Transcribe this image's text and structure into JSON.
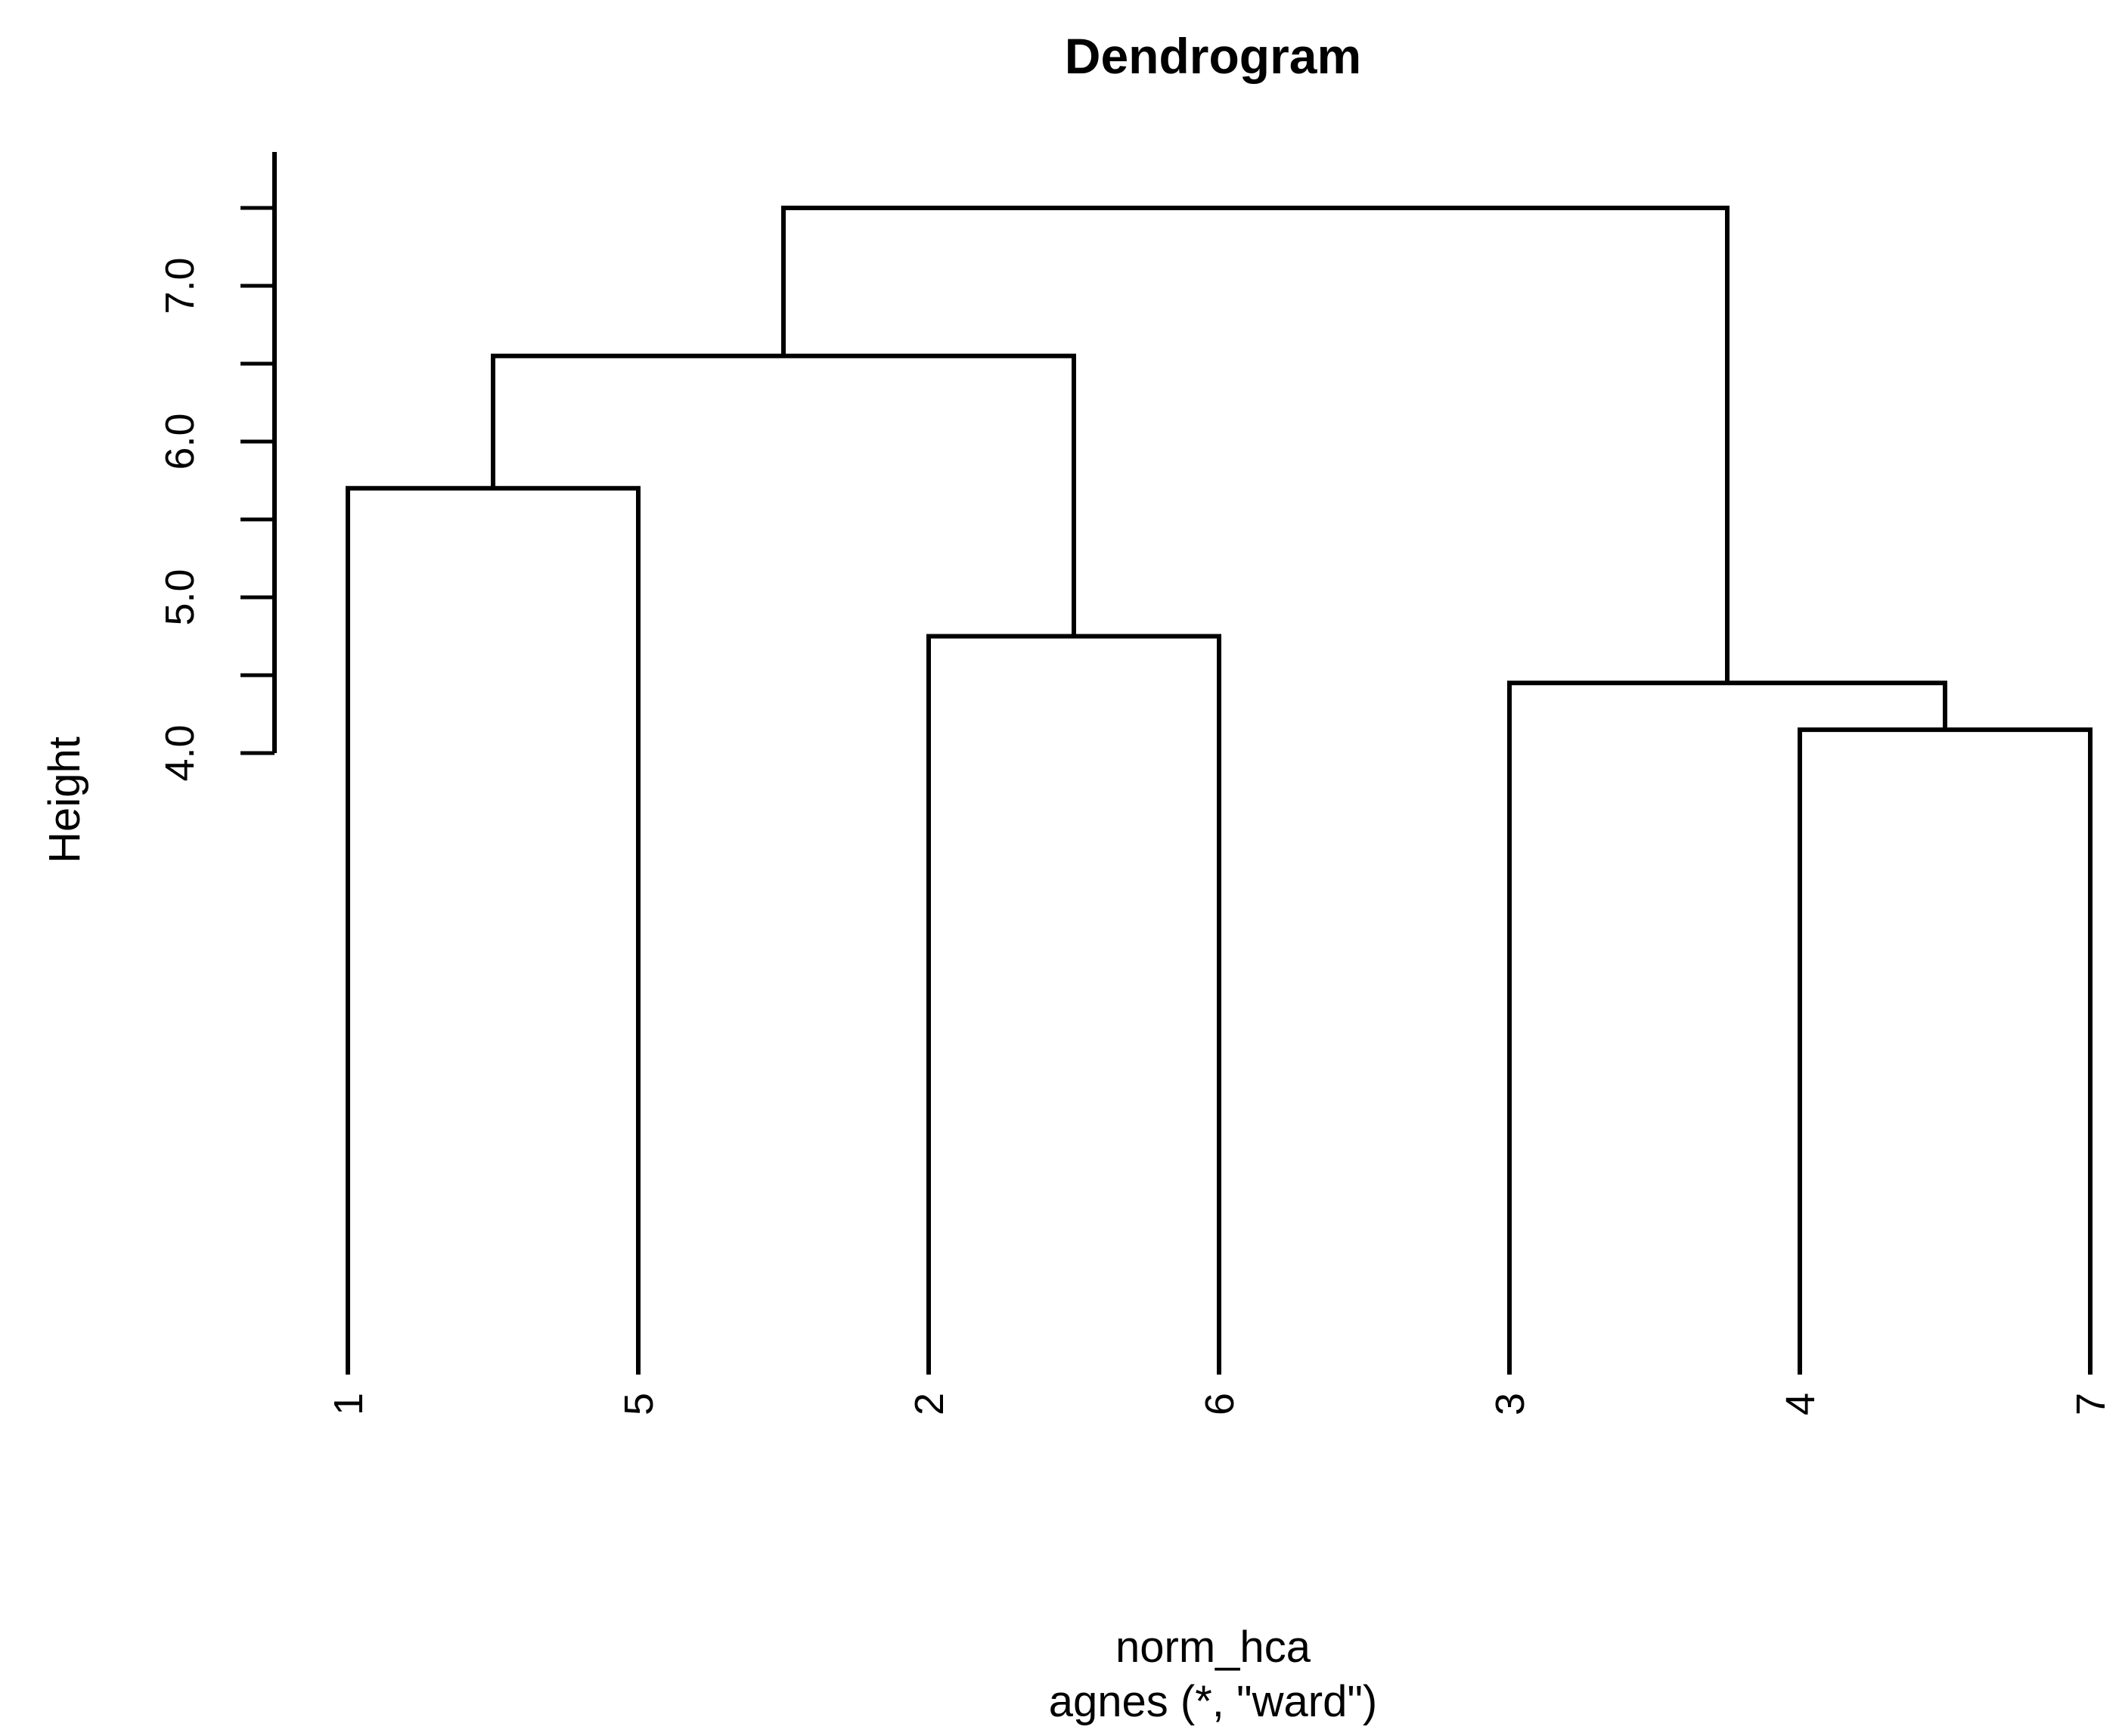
{
  "colors": {
    "background": "#ffffff",
    "line": "#000000",
    "text": "#000000"
  },
  "chart_data": {
    "type": "dendrogram",
    "title": "Dendrogram",
    "ylabel": "Height",
    "xlabel_lines": [
      "norm_hca",
      "agnes (*, \"ward\")"
    ],
    "leaf_order": [
      "1",
      "5",
      "2",
      "6",
      "3",
      "4",
      "7"
    ],
    "axis": {
      "min": 4.0,
      "max": 7.5,
      "minor_tick_step": 0.5,
      "tick_values": [
        4.0,
        5.0,
        6.0,
        7.0
      ],
      "tick_labels": [
        "4.0",
        "5.0",
        "6.0",
        "7.0"
      ],
      "side": "left",
      "grid": false
    },
    "merge_heights": {
      "leaf1_leaf5": 5.7,
      "leaf2_leaf6": 4.75,
      "cluster15_cluster26": 6.55,
      "leaf4_leaf7": 4.15,
      "leaf3_cluster47": 4.45,
      "root": 7.5
    },
    "tree": {
      "height": 7.5,
      "children": [
        {
          "height": 6.55,
          "children": [
            {
              "height": 5.7,
              "children": [
                {
                  "leaf": "1"
                },
                {
                  "leaf": "5"
                }
              ]
            },
            {
              "height": 4.75,
              "children": [
                {
                  "leaf": "2"
                },
                {
                  "leaf": "6"
                }
              ]
            }
          ]
        },
        {
          "height": 4.45,
          "children": [
            {
              "leaf": "3"
            },
            {
              "height": 4.15,
              "children": [
                {
                  "leaf": "4"
                },
                {
                  "leaf": "7"
                }
              ]
            }
          ]
        }
      ]
    }
  }
}
